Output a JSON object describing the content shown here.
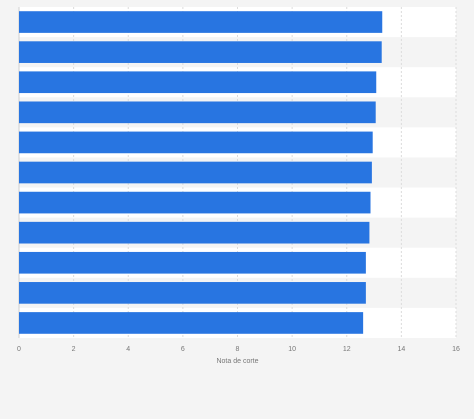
{
  "chart_data": {
    "type": "bar",
    "orientation": "horizontal",
    "categories": [
      "",
      "",
      "",
      "",
      "",
      "",
      "",
      "",
      "",
      "",
      ""
    ],
    "values": [
      13.3,
      13.28,
      13.08,
      13.06,
      12.95,
      12.92,
      12.87,
      12.83,
      12.7,
      12.7,
      12.6
    ],
    "title": "",
    "xlabel": "Nota de corte",
    "ylabel": "",
    "xlim": [
      0,
      16
    ],
    "xticks": [
      0,
      2,
      4,
      6,
      8,
      10,
      12,
      14,
      16
    ],
    "grid": true,
    "legend": "none",
    "colors": {
      "bar": "#2875e1",
      "grid": "#dcdcdc",
      "background": "#f4f4f4",
      "band": "#ffffff",
      "text": "#777777"
    }
  }
}
